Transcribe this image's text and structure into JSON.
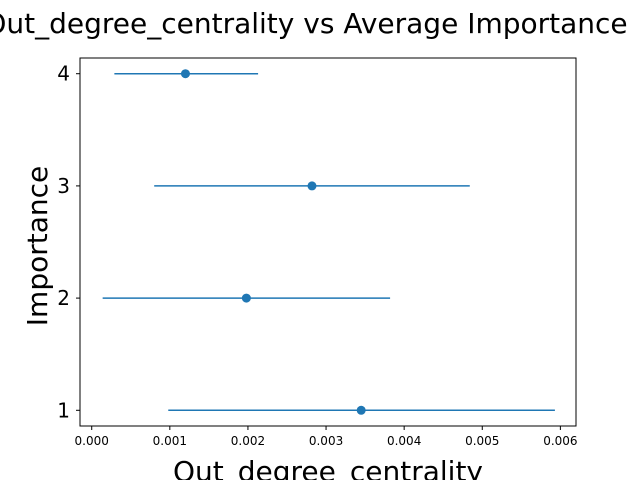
{
  "chart_data": {
    "type": "scatter",
    "title": "Out_degree_centrality vs Average Importance",
    "xlabel": "Out_degree_centrality",
    "ylabel": "Importance",
    "xlim": [
      -0.00015,
      0.0062
    ],
    "ylim": [
      0.86,
      4.14
    ],
    "x_ticks": [
      "0.000",
      "0.001",
      "0.002",
      "0.003",
      "0.004",
      "0.005",
      "0.006"
    ],
    "y_ticks": [
      "1",
      "2",
      "3",
      "4"
    ],
    "grid": false,
    "series": [
      {
        "color": "#1f77b4",
        "points": [
          {
            "y": 1,
            "x": 0.00345,
            "xerr_low": 0.00098,
            "xerr_high": 0.00593
          },
          {
            "y": 2,
            "x": 0.00198,
            "xerr_low": 0.00014,
            "xerr_high": 0.00382
          },
          {
            "y": 3,
            "x": 0.00282,
            "xerr_low": 0.0008,
            "xerr_high": 0.00484
          },
          {
            "y": 4,
            "x": 0.0012,
            "xerr_low": 0.00029,
            "xerr_high": 0.00213
          }
        ]
      }
    ]
  }
}
